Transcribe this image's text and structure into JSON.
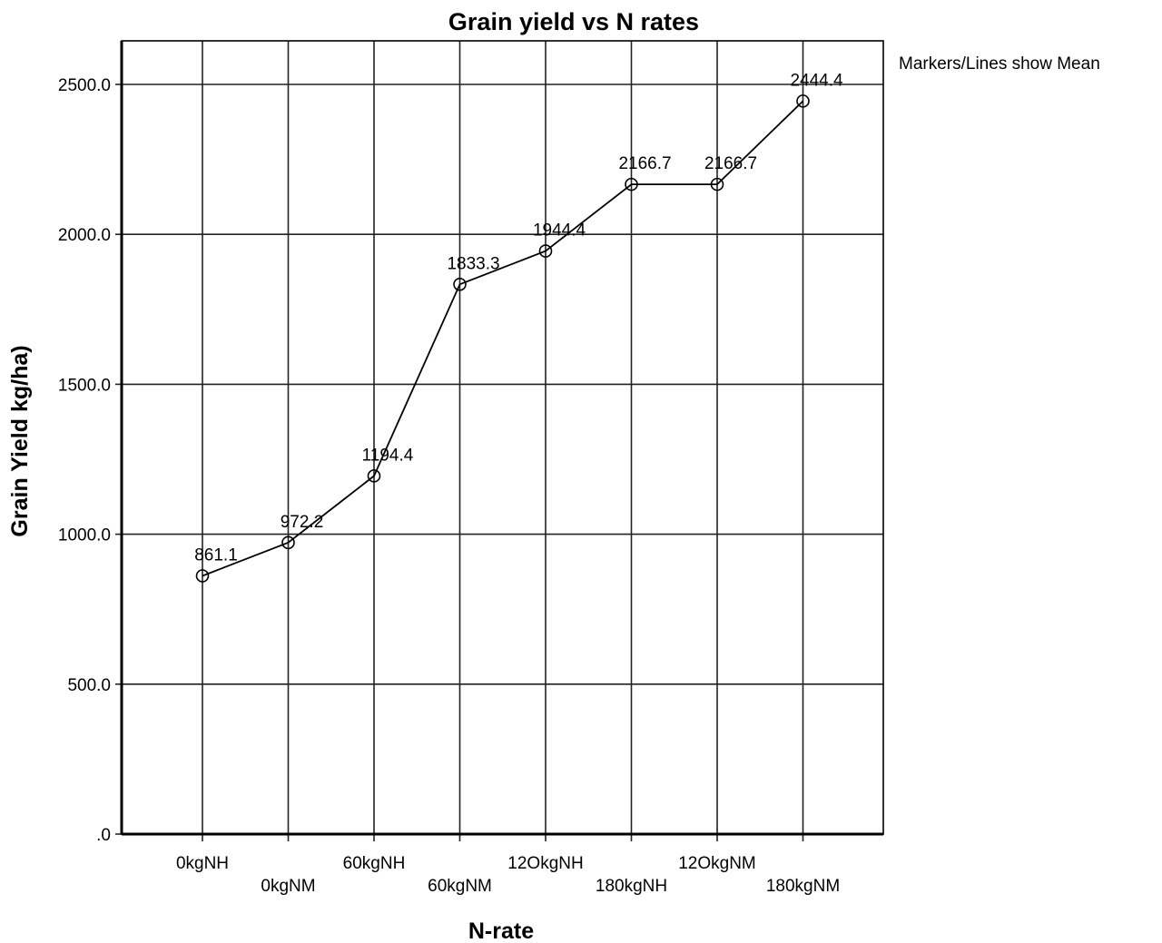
{
  "chart_data": {
    "type": "line",
    "title": "Grain yield vs N rates",
    "xlabel": "N-rate",
    "ylabel": "Grain Yield kg/ha)",
    "note": "Markers/Lines show Mean",
    "categories": [
      "0kgNH",
      "0kgNM",
      "60kgNH",
      "60kgNM",
      "12OkgNH",
      "180kgNH",
      "12OkgNM",
      "180kgNM"
    ],
    "series": [
      {
        "values": [
          861.1,
          972.2,
          1194.4,
          1833.3,
          1944.4,
          2166.7,
          2166.7,
          2444.4
        ],
        "value_labels": [
          "861.1",
          "972.2",
          "1194.4",
          "1833.3",
          "1944.4",
          "2166.7",
          "2166.7",
          "2444.4"
        ]
      }
    ],
    "y_ticks": [
      0,
      500,
      1000,
      1500,
      2000,
      2500
    ],
    "y_tick_labels": [
      ".0",
      "500.0",
      "1000.0",
      "1500.0",
      "2000.0",
      "2500.0"
    ],
    "ylim": [
      0,
      2500
    ],
    "grid": true,
    "marker": "open-circle",
    "line_color": "#000000"
  }
}
